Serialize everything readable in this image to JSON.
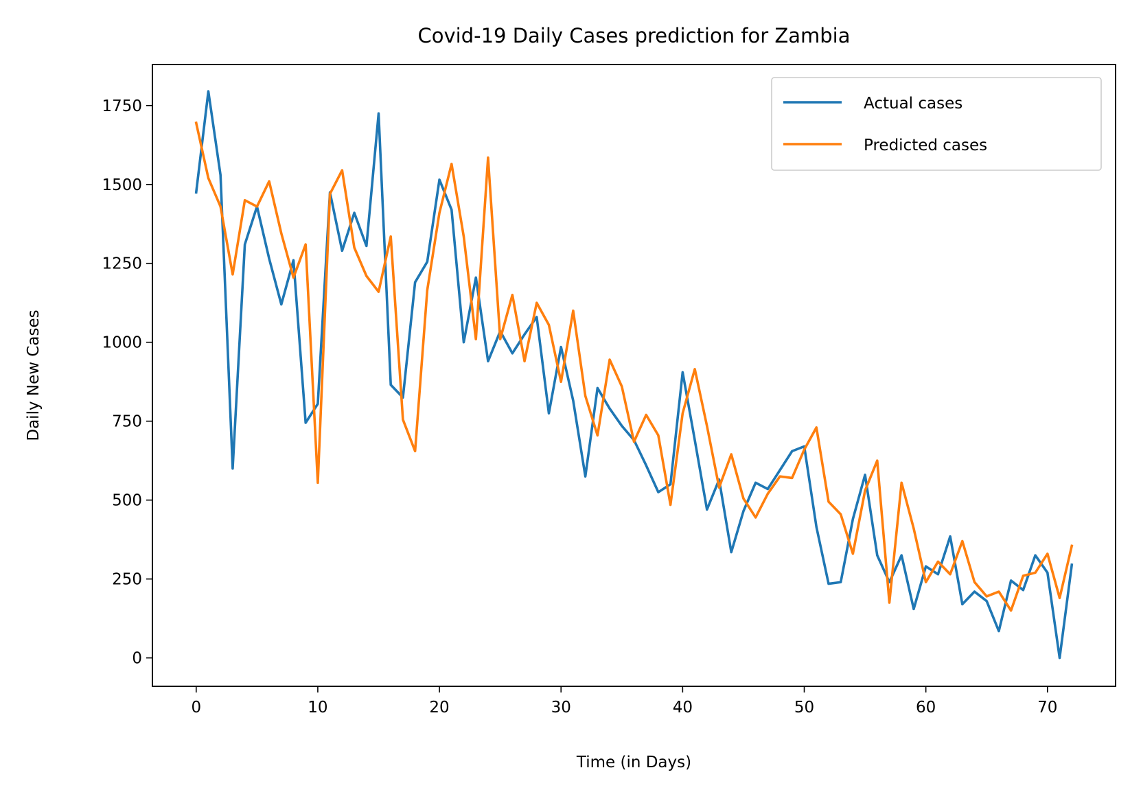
{
  "chart_data": {
    "type": "line",
    "title": "Covid-19 Daily Cases prediction for Zambia",
    "xlabel": "Time (in Days)",
    "ylabel": "Daily New Cases",
    "xlim": [
      -3.6,
      75.6
    ],
    "ylim": [
      -90,
      1880
    ],
    "xticks": [
      0,
      10,
      20,
      30,
      40,
      50,
      60,
      70
    ],
    "yticks": [
      0,
      250,
      500,
      750,
      1000,
      1250,
      1500,
      1750
    ],
    "grid": false,
    "legend_position": "top-right",
    "series": [
      {
        "name": "Actual cases",
        "color": "#1f77b4",
        "values": [
          1475,
          1795,
          1530,
          600,
          1310,
          1430,
          1265,
          1120,
          1260,
          745,
          805,
          1475,
          1290,
          1410,
          1305,
          1725,
          865,
          825,
          1190,
          1255,
          1515,
          1420,
          1000,
          1205,
          940,
          1035,
          965,
          1025,
          1080,
          775,
          985,
          815,
          575,
          855,
          790,
          735,
          690,
          610,
          525,
          550,
          905,
          690,
          470,
          565,
          335,
          465,
          555,
          535,
          595,
          655,
          670,
          415,
          235,
          240,
          440,
          580,
          325,
          240,
          325,
          155,
          290,
          265,
          385,
          170,
          210,
          180,
          85,
          245,
          215,
          325,
          270,
          0,
          295
        ]
      },
      {
        "name": "Predicted cases",
        "color": "#ff7f0e",
        "values": [
          1695,
          1520,
          1430,
          1215,
          1450,
          1430,
          1510,
          1345,
          1205,
          1310,
          555,
          1470,
          1545,
          1300,
          1210,
          1160,
          1335,
          755,
          655,
          1165,
          1410,
          1565,
          1335,
          1010,
          1585,
          1010,
          1150,
          940,
          1125,
          1055,
          875,
          1100,
          830,
          705,
          945,
          860,
          685,
          770,
          705,
          485,
          775,
          915,
          735,
          540,
          645,
          505,
          445,
          520,
          575,
          570,
          660,
          730,
          495,
          455,
          330,
          530,
          625,
          175,
          555,
          410,
          240,
          305,
          265,
          370,
          240,
          195,
          210,
          150,
          260,
          270,
          330,
          190,
          355
        ]
      }
    ]
  }
}
